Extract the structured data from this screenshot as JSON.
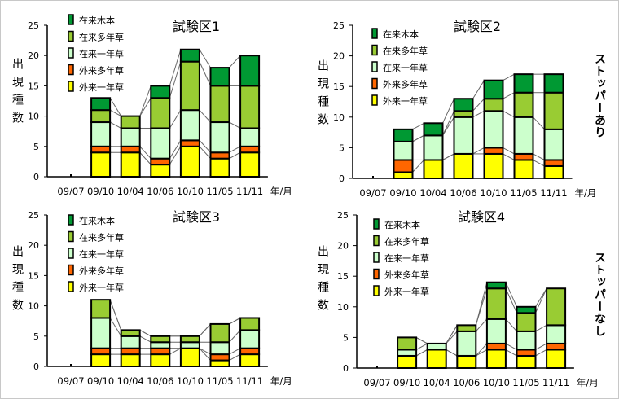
{
  "y_unit_label": "出現種数",
  "x_unit_label": "年/月",
  "row_labels": [
    "ストッパーあり",
    "ストッパーなし"
  ],
  "colors": {
    "外来一年草": "#ffff00",
    "外来多年草": "#ff6600",
    "在来一年草": "#ccffcc",
    "在来多年草": "#99cc33",
    "在来木本": "#009933"
  },
  "chart_data": [
    {
      "type": "bar",
      "stacked": true,
      "title": "試験区1",
      "categories": [
        "09/07",
        "09/10",
        "10/04",
        "10/06",
        "10/10",
        "11/05",
        "11/11"
      ],
      "ylim": [
        0,
        25
      ],
      "yticks": [
        0,
        5,
        10,
        15,
        20,
        25
      ],
      "legend": "top-left",
      "series": [
        {
          "name": "外来一年草",
          "values": [
            0,
            4,
            4,
            2,
            5,
            3,
            4
          ]
        },
        {
          "name": "外来多年草",
          "values": [
            0,
            1,
            1,
            1,
            1,
            1,
            1
          ]
        },
        {
          "name": "在来一年草",
          "values": [
            0,
            4,
            3,
            5,
            5,
            5,
            3
          ]
        },
        {
          "name": "在来多年草",
          "values": [
            0,
            2,
            2,
            5,
            8,
            6,
            7
          ]
        },
        {
          "name": "在来木本",
          "values": [
            0,
            2,
            0,
            2,
            2,
            3,
            5
          ]
        }
      ]
    },
    {
      "type": "bar",
      "stacked": true,
      "title": "試験区2",
      "categories": [
        "09/07",
        "09/10",
        "10/04",
        "10/06",
        "10/10",
        "11/05",
        "11/11"
      ],
      "ylim": [
        0,
        25
      ],
      "yticks": [
        0,
        5,
        10,
        15,
        20,
        25
      ],
      "legend": "top-left",
      "series": [
        {
          "name": "外来一年草",
          "values": [
            0,
            1,
            3,
            4,
            4,
            3,
            2
          ]
        },
        {
          "name": "外来多年草",
          "values": [
            0,
            2,
            0,
            0,
            1,
            1,
            1
          ]
        },
        {
          "name": "在来一年草",
          "values": [
            0,
            3,
            4,
            6,
            6,
            6,
            5
          ]
        },
        {
          "name": "在来多年草",
          "values": [
            0,
            0,
            0,
            1,
            2,
            4,
            6
          ]
        },
        {
          "name": "在来木本",
          "values": [
            0,
            2,
            2,
            2,
            3,
            3,
            3
          ]
        }
      ]
    },
    {
      "type": "bar",
      "stacked": true,
      "title": "試験区3",
      "categories": [
        "09/07",
        "09/10",
        "10/04",
        "10/06",
        "10/10",
        "11/05",
        "11/11"
      ],
      "ylim": [
        0,
        25
      ],
      "yticks": [
        0,
        5,
        10,
        15,
        20,
        25
      ],
      "legend": "top-left",
      "series": [
        {
          "name": "外来一年草",
          "values": [
            0,
            2,
            2,
            2,
            3,
            1,
            2
          ]
        },
        {
          "name": "外来多年草",
          "values": [
            0,
            1,
            1,
            1,
            0,
            1,
            1
          ]
        },
        {
          "name": "在来一年草",
          "values": [
            0,
            5,
            2,
            1,
            1,
            2,
            3
          ]
        },
        {
          "name": "在来多年草",
          "values": [
            0,
            3,
            1,
            1,
            1,
            3,
            2
          ]
        },
        {
          "name": "在来木本",
          "values": [
            0,
            0,
            0,
            0,
            0,
            0,
            0
          ]
        }
      ]
    },
    {
      "type": "bar",
      "stacked": true,
      "title": "試験区4",
      "categories": [
        "09/07",
        "09/10",
        "10/04",
        "10/06",
        "10/10",
        "11/05",
        "11/11"
      ],
      "ylim": [
        0,
        25
      ],
      "yticks": [
        0,
        5,
        10,
        15,
        20,
        25
      ],
      "legend": "top-left",
      "series": [
        {
          "name": "外来一年草",
          "values": [
            0,
            2,
            3,
            2,
            3,
            2,
            3
          ]
        },
        {
          "name": "外来多年草",
          "values": [
            0,
            0,
            0,
            0,
            1,
            1,
            1
          ]
        },
        {
          "name": "在来一年草",
          "values": [
            0,
            1,
            1,
            4,
            4,
            3,
            3
          ]
        },
        {
          "name": "在来多年草",
          "values": [
            0,
            2,
            0,
            1,
            5,
            3,
            6
          ]
        },
        {
          "name": "在来木本",
          "values": [
            0,
            0,
            0,
            0,
            1,
            1,
            0
          ]
        }
      ]
    }
  ]
}
